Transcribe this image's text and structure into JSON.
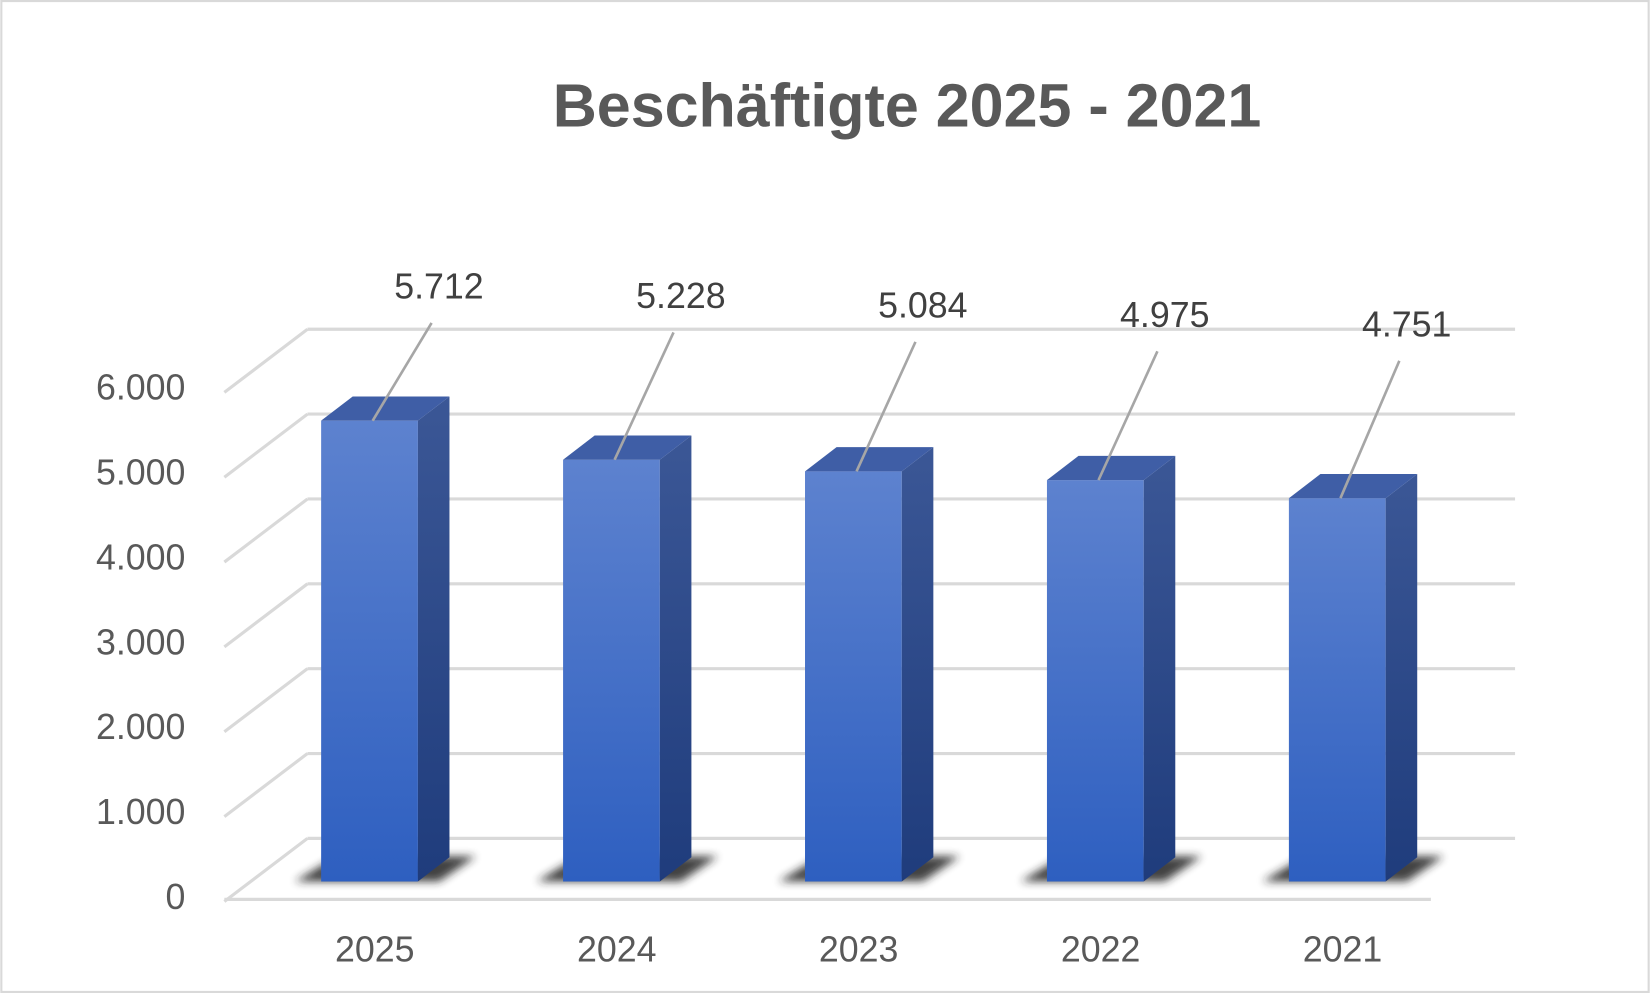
{
  "chart_data": {
    "type": "bar3d",
    "title": "Beschäftigte 2025 - 2021",
    "categories": [
      "2025",
      "2024",
      "2023",
      "2022",
      "2021"
    ],
    "values": [
      5712,
      5228,
      5084,
      4975,
      4751
    ],
    "value_labels": [
      "5.712",
      "5.228",
      "5.084",
      "4.975",
      "4.751"
    ],
    "color": "#3a68c8",
    "ylim": [
      0,
      6000
    ],
    "yticks": [
      0,
      {
        "value": 1000,
        "label": "1.000"
      },
      {
        "value": 2000,
        "label": "2.000"
      },
      {
        "value": 3000,
        "label": "3.000"
      },
      {
        "value": 4000,
        "label": "4.000"
      },
      {
        "value": 5000,
        "label": "5.000"
      },
      {
        "value": 6000,
        "label": "6.000"
      }
    ],
    "grid": true
  }
}
